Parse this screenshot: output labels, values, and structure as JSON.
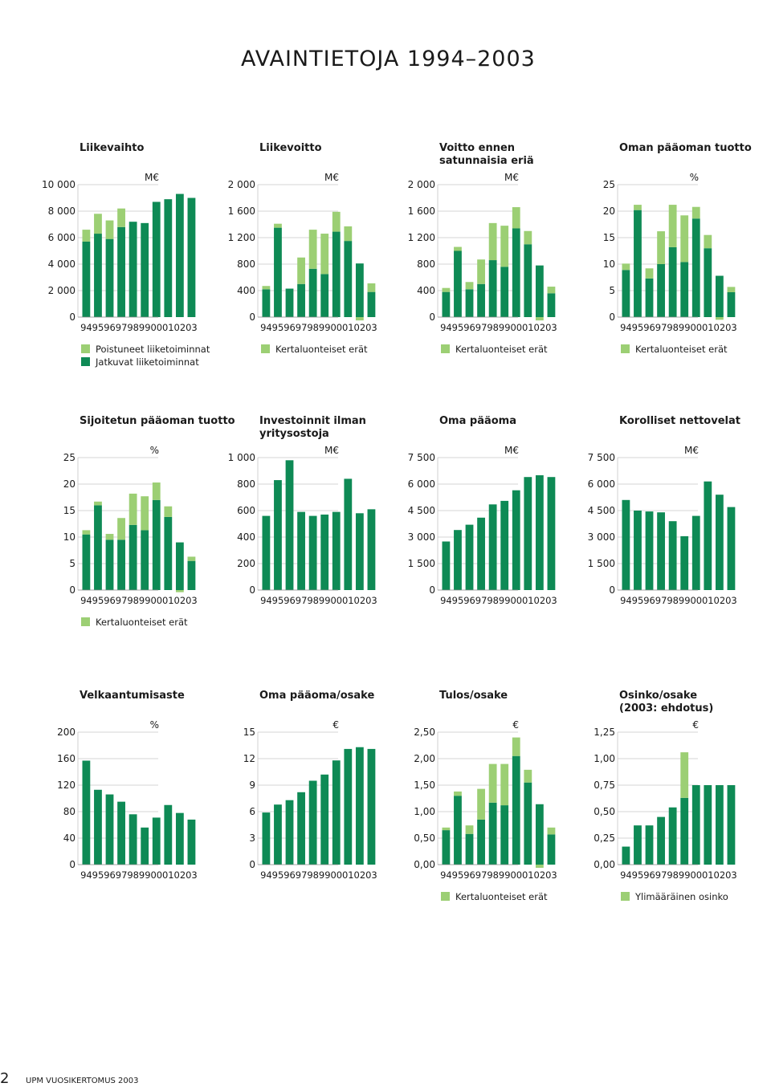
{
  "page": {
    "title": "AVAINTIETOJA 1994–2003",
    "page_number": "2",
    "footer": "UPM VUOSIKERTOMUS 2003"
  },
  "colors": {
    "dark": "#0e8a55",
    "light": "#9ccf74",
    "grid": "#c7c7c7"
  },
  "chart_data": [
    {
      "type": "bar",
      "title": [
        "Liikevaihto"
      ],
      "unit": "M€",
      "ylim": [
        0,
        10000
      ],
      "yticks": [
        "0",
        "2 000",
        "4 000",
        "6 000",
        "8 000",
        "10 000"
      ],
      "categories": [
        "94",
        "95",
        "96",
        "97",
        "98",
        "99",
        "00",
        "01",
        "02",
        "03"
      ],
      "series": [
        {
          "name": "Jatkuvat liiketoiminnat",
          "values": [
            5700,
            6300,
            5900,
            6800,
            7200,
            7100,
            8700,
            8900,
            9300,
            9000
          ]
        },
        {
          "name": "Poistuneet liiketoiminnat",
          "values": [
            900,
            1500,
            1400,
            1400,
            0,
            0,
            0,
            0,
            0,
            0
          ]
        }
      ],
      "legend": [
        "Poistuneet liiketoiminnat",
        "Jatkuvat liiketoiminnat"
      ]
    },
    {
      "type": "bar",
      "title": [
        "Liikevoitto"
      ],
      "unit": "M€",
      "ylim": [
        0,
        2000
      ],
      "yticks": [
        "0",
        "400",
        "800",
        "1 200",
        "1 600",
        "2 000"
      ],
      "categories": [
        "94",
        "95",
        "96",
        "97",
        "98",
        "99",
        "00",
        "01",
        "02",
        "03"
      ],
      "series": [
        {
          "name": "Liikevoitto",
          "values": [
            420,
            1350,
            430,
            500,
            730,
            650,
            1290,
            1150,
            810,
            380
          ]
        },
        {
          "name": "Kertaluonteiset erät",
          "values": [
            50,
            60,
            0,
            400,
            590,
            610,
            300,
            220,
            0,
            130
          ]
        }
      ],
      "negative_items": [
        {
          "index": 8,
          "value": -50
        }
      ],
      "legend": [
        "Kertaluonteiset erät"
      ]
    },
    {
      "type": "bar",
      "title": [
        "Voitto ennen",
        "satunnaisia eriä"
      ],
      "unit": "M€",
      "ylim": [
        0,
        2000
      ],
      "yticks": [
        "0",
        "400",
        "800",
        "1 200",
        "1 600",
        "2 000"
      ],
      "categories": [
        "94",
        "95",
        "96",
        "97",
        "98",
        "99",
        "00",
        "01",
        "02",
        "03"
      ],
      "series": [
        {
          "name": "Voitto ennen satunnaisia eriä",
          "values": [
            380,
            1000,
            420,
            500,
            860,
            760,
            1340,
            1100,
            780,
            360
          ]
        },
        {
          "name": "Kertaluonteiset erät",
          "values": [
            60,
            60,
            110,
            370,
            560,
            620,
            320,
            200,
            0,
            100
          ]
        }
      ],
      "negative_items": [
        {
          "index": 8,
          "value": -50
        }
      ],
      "legend": [
        "Kertaluonteiset erät"
      ]
    },
    {
      "type": "bar",
      "title": [
        "Oman pääoman tuotto"
      ],
      "unit": "%",
      "ylim": [
        0,
        25
      ],
      "yticks": [
        "0",
        "5",
        "10",
        "15",
        "20",
        "25"
      ],
      "categories": [
        "94",
        "95",
        "96",
        "97",
        "98",
        "99",
        "00",
        "01",
        "02",
        "03"
      ],
      "series": [
        {
          "name": "Oman pääoman tuotto",
          "values": [
            8.9,
            20.2,
            7.3,
            10.0,
            13.2,
            10.4,
            18.6,
            13.0,
            7.8,
            4.7
          ]
        },
        {
          "name": "Kertaluonteiset erät",
          "values": [
            1.2,
            1.0,
            1.9,
            6.2,
            8.0,
            8.8,
            2.2,
            2.5,
            0,
            1.0
          ]
        }
      ],
      "negative_items": [
        {
          "index": 8,
          "value": -0.5
        }
      ],
      "legend": [
        "Kertaluonteiset erät"
      ]
    },
    {
      "type": "bar",
      "title": [
        "Sijoitetun pääoman tuotto"
      ],
      "unit": "%",
      "ylim": [
        0,
        25
      ],
      "yticks": [
        "0",
        "5",
        "10",
        "15",
        "20",
        "25"
      ],
      "categories": [
        "94",
        "95",
        "96",
        "97",
        "98",
        "99",
        "00",
        "01",
        "02",
        "03"
      ],
      "series": [
        {
          "name": "Sijoitetun pääoman tuotto",
          "values": [
            10.5,
            16.0,
            9.5,
            9.5,
            12.3,
            11.3,
            17.0,
            13.8,
            9.0,
            5.5
          ]
        },
        {
          "name": "Kertaluonteiset erät",
          "values": [
            0.8,
            0.7,
            1.1,
            4.1,
            5.9,
            6.4,
            3.3,
            2.0,
            0,
            0.8
          ]
        }
      ],
      "negative_items": [
        {
          "index": 8,
          "value": -0.4
        }
      ],
      "legend": [
        "Kertaluonteiset erät"
      ]
    },
    {
      "type": "bar",
      "title": [
        "Investoinnit ilman",
        "yritysostoja"
      ],
      "unit": "M€",
      "ylim": [
        0,
        1000
      ],
      "yticks": [
        "0",
        "200",
        "400",
        "600",
        "800",
        "1 000"
      ],
      "categories": [
        "94",
        "95",
        "96",
        "97",
        "98",
        "99",
        "00",
        "01",
        "02",
        "03"
      ],
      "series": [
        {
          "name": "Investoinnit ilman yritysostoja",
          "values": [
            560,
            830,
            980,
            590,
            560,
            570,
            590,
            840,
            580,
            610
          ]
        }
      ],
      "legend": []
    },
    {
      "type": "bar",
      "title": [
        "Oma pääoma"
      ],
      "unit": "M€",
      "ylim": [
        0,
        7500
      ],
      "yticks": [
        "0",
        "1 500",
        "3 000",
        "4 500",
        "6 000",
        "7 500"
      ],
      "categories": [
        "94",
        "95",
        "96",
        "97",
        "98",
        "99",
        "00",
        "01",
        "02",
        "03"
      ],
      "series": [
        {
          "name": "Oma pääoma",
          "values": [
            2750,
            3400,
            3700,
            4100,
            4850,
            5050,
            5650,
            6400,
            6500,
            6400
          ]
        }
      ],
      "legend": []
    },
    {
      "type": "bar",
      "title": [
        "Korolliset nettovelat"
      ],
      "unit": "M€",
      "ylim": [
        0,
        7500
      ],
      "yticks": [
        "0",
        "1 500",
        "3 000",
        "4 500",
        "6 000",
        "7 500"
      ],
      "categories": [
        "94",
        "95",
        "96",
        "97",
        "98",
        "99",
        "00",
        "01",
        "02",
        "03"
      ],
      "series": [
        {
          "name": "Korolliset nettovelat",
          "values": [
            5100,
            4500,
            4450,
            4400,
            3900,
            3050,
            4200,
            6150,
            5400,
            4700
          ]
        }
      ],
      "legend": []
    },
    {
      "type": "bar",
      "title": [
        "Velkaantumisaste"
      ],
      "unit": "%",
      "ylim": [
        0,
        200
      ],
      "yticks": [
        "0",
        "40",
        "80",
        "120",
        "160",
        "200"
      ],
      "categories": [
        "94",
        "95",
        "96",
        "97",
        "98",
        "99",
        "00",
        "01",
        "02",
        "03"
      ],
      "series": [
        {
          "name": "Velkaantumisaste",
          "values": [
            157,
            113,
            106,
            95,
            76,
            56,
            71,
            90,
            78,
            68
          ]
        }
      ],
      "legend": []
    },
    {
      "type": "bar",
      "title": [
        "Oma pääoma/osake"
      ],
      "unit": "€",
      "ylim": [
        0,
        15
      ],
      "yticks": [
        "0",
        "3",
        "6",
        "9",
        "12",
        "15"
      ],
      "categories": [
        "94",
        "95",
        "96",
        "97",
        "98",
        "99",
        "00",
        "01",
        "02",
        "03"
      ],
      "series": [
        {
          "name": "Oma pääoma/osake",
          "values": [
            5.9,
            6.8,
            7.3,
            8.2,
            9.5,
            10.2,
            11.8,
            13.1,
            13.3,
            13.1
          ]
        }
      ],
      "legend": []
    },
    {
      "type": "bar",
      "title": [
        "Tulos/osake"
      ],
      "unit": "€",
      "ylim": [
        0,
        2.5
      ],
      "yticks": [
        "0,00",
        "0,50",
        "1,00",
        "1,50",
        "2,00",
        "2,50"
      ],
      "categories": [
        "94",
        "95",
        "96",
        "97",
        "98",
        "99",
        "00",
        "01",
        "02",
        "03"
      ],
      "series": [
        {
          "name": "Tulos/osake",
          "values": [
            0.65,
            1.3,
            0.58,
            0.85,
            1.17,
            1.12,
            2.05,
            1.55,
            1.14,
            0.57
          ]
        },
        {
          "name": "Kertaluonteiset erät",
          "values": [
            0.05,
            0.08,
            0.16,
            0.58,
            0.73,
            0.78,
            0.35,
            0.24,
            0,
            0.13
          ]
        }
      ],
      "negative_items": [
        {
          "index": 8,
          "value": -0.06
        }
      ],
      "legend": [
        "Kertaluonteiset erät"
      ]
    },
    {
      "type": "bar",
      "title": [
        "Osinko/osake",
        "(2003: ehdotus)"
      ],
      "unit": "€",
      "ylim": [
        0,
        1.25
      ],
      "yticks": [
        "0,00",
        "0,25",
        "0,50",
        "0,75",
        "1,00",
        "1,25"
      ],
      "categories": [
        "94",
        "95",
        "96",
        "97",
        "98",
        "99",
        "00",
        "01",
        "02",
        "03"
      ],
      "series": [
        {
          "name": "Osinko/osake",
          "values": [
            0.17,
            0.37,
            0.37,
            0.45,
            0.54,
            0.63,
            0.75,
            0.75,
            0.75,
            0.75
          ]
        },
        {
          "name": "Ylimääräinen osinko",
          "values": [
            0,
            0,
            0,
            0,
            0,
            0.43,
            0,
            0,
            0,
            0
          ]
        }
      ],
      "legend": [
        "Ylimääräinen osinko"
      ]
    }
  ]
}
